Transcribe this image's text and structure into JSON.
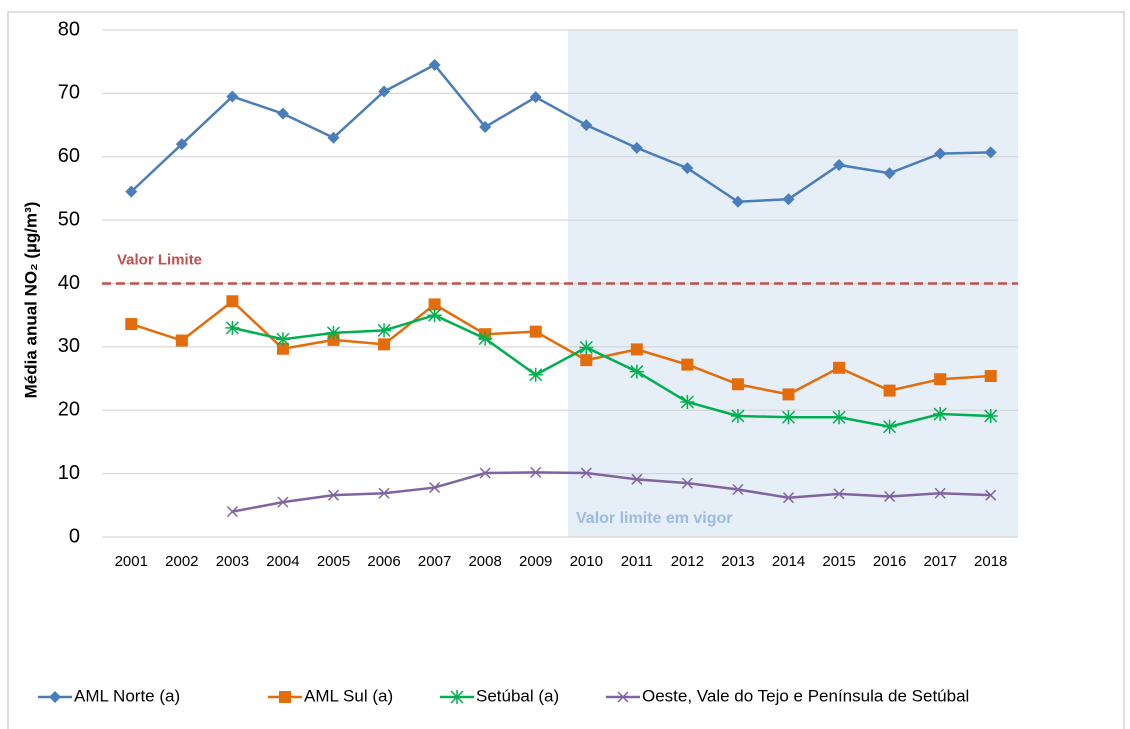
{
  "chart_data": {
    "type": "line",
    "y_label": "Média anual  NO₂  (µg/m³)",
    "categories": [
      "2001",
      "2002",
      "2003",
      "2004",
      "2005",
      "2006",
      "2007",
      "2008",
      "2009",
      "2010",
      "2011",
      "2012",
      "2013",
      "2014",
      "2015",
      "2016",
      "2017",
      "2018"
    ],
    "series": [
      {
        "name": "AML Norte (a)",
        "color": "#4a7ebb",
        "marker": "diamond",
        "values": [
          54.5,
          62,
          69.5,
          66.8,
          63,
          70.3,
          74.5,
          64.7,
          69.4,
          65,
          61.4,
          58.2,
          52.9,
          53.3,
          58.7,
          57.4,
          60.5,
          60.7
        ]
      },
      {
        "name": "AML Sul (a)",
        "color": "#e46c0a",
        "marker": "square",
        "values": [
          33.6,
          31,
          37.2,
          29.7,
          31.1,
          30.4,
          36.7,
          32,
          32.4,
          27.9,
          29.6,
          27.2,
          24.1,
          22.5,
          26.7,
          23.1,
          24.9,
          25.4
        ]
      },
      {
        "name": "Setúbal (a)",
        "color": "#00b050",
        "marker": "asterisk",
        "values": [
          null,
          null,
          33,
          31.2,
          32.2,
          32.6,
          35,
          31.3,
          25.6,
          29.9,
          26.1,
          21.3,
          19.1,
          18.9,
          18.9,
          17.4,
          19.4,
          19.1
        ]
      },
      {
        "name": "Oeste, Vale do Tejo e Península de Setúbal",
        "color": "#8064a2",
        "marker": "x",
        "values": [
          null,
          null,
          4,
          5.5,
          6.6,
          6.9,
          7.8,
          10.1,
          10.2,
          10.1,
          9.1,
          8.5,
          7.5,
          6.2,
          6.8,
          6.4,
          6.9,
          6.6
        ]
      }
    ],
    "ylim": [
      0,
      80
    ],
    "yticks": [
      0,
      10,
      20,
      30,
      40,
      50,
      60,
      70,
      80
    ],
    "grid": true,
    "reference_line": {
      "value": 40,
      "label": "Valor Limite",
      "color": "#c0504d"
    },
    "highlight": {
      "start": "2010",
      "label": "Valor limite em vigor",
      "color": "#e6eef8"
    },
    "legend": "bottom"
  }
}
